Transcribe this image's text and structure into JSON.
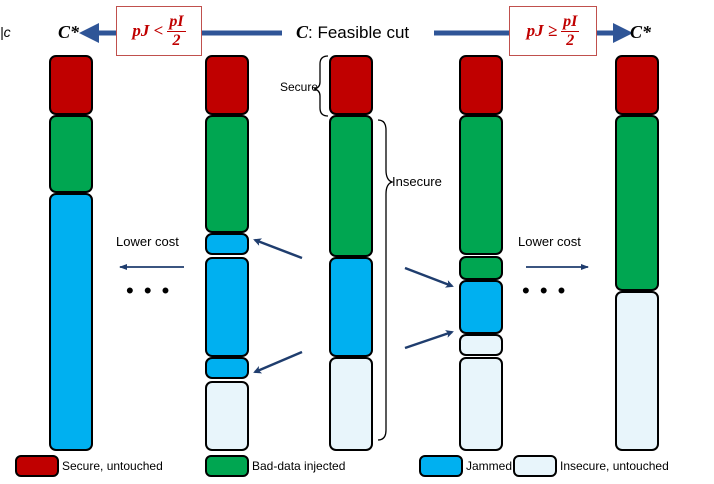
{
  "top": {
    "cstar_left": "C*",
    "cstar_right": "C*",
    "c_symbol": "C",
    "feasible_label": ": Feasible cut",
    "corner_glyph": "|c",
    "cond_left": {
      "lhs": "pJ <",
      "num": "pI",
      "den": "2"
    },
    "cond_right": {
      "lhs": "pJ ≥",
      "num": "pI",
      "den": "2"
    }
  },
  "annotations": {
    "secure": "Secure",
    "insecure": "Insecure",
    "lower_cost_left": "Lower cost",
    "lower_cost_right": "Lower cost",
    "ellipsis_left": "• • •",
    "ellipsis_right": "• • •"
  },
  "colors": {
    "secure": "#c00000",
    "bad_data": "#00a651",
    "jammed": "#00b0f0",
    "insecure": "#e8f5fb",
    "arrow": "#1f3d6e",
    "header_arrow": "#2f5597",
    "cond_border": "#c0504d"
  },
  "columns": [
    {
      "name": "cstar-left",
      "segments": [
        "secure",
        "bad_data",
        "jammed"
      ]
    },
    {
      "name": "intermediate-left",
      "segments": [
        "secure",
        "bad_data",
        "jammed",
        "jammed",
        "jammed",
        "insecure"
      ]
    },
    {
      "name": "feasible-cut",
      "segments": [
        "secure",
        "bad_data",
        "jammed",
        "insecure"
      ]
    },
    {
      "name": "intermediate-right",
      "segments": [
        "secure",
        "bad_data",
        "bad_data",
        "jammed",
        "insecure",
        "insecure"
      ]
    },
    {
      "name": "cstar-right",
      "segments": [
        "secure",
        "bad_data",
        "insecure"
      ]
    }
  ],
  "legend": [
    {
      "key": "secure",
      "label": "Secure, untouched"
    },
    {
      "key": "bad_data",
      "label": "Bad-data injected"
    },
    {
      "key": "jammed",
      "label": "Jammed"
    },
    {
      "key": "insecure",
      "label": "Insecure, untouched"
    }
  ]
}
